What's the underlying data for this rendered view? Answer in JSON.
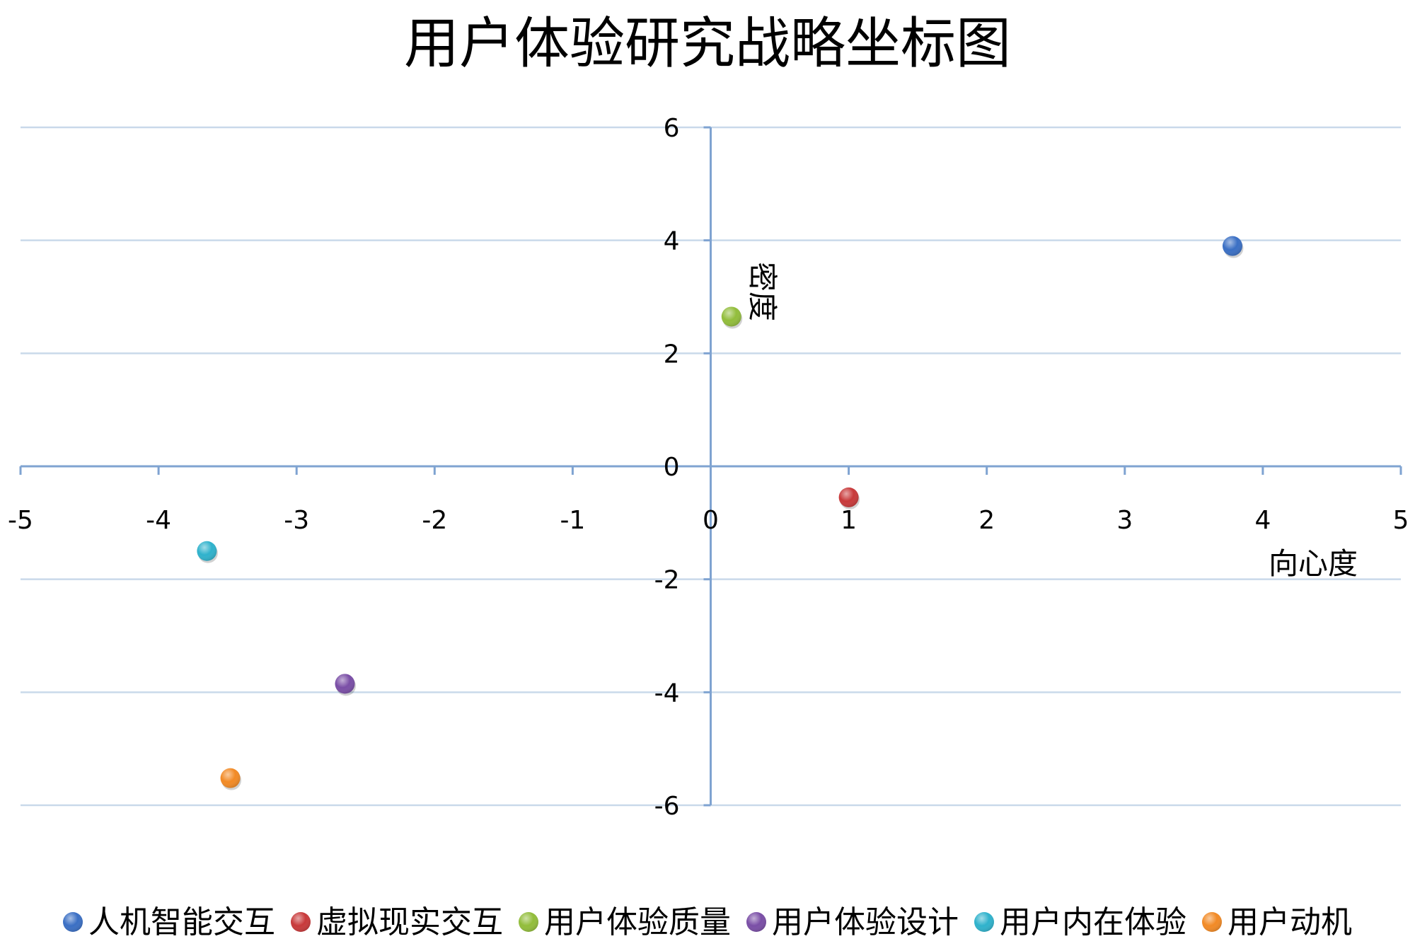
{
  "chart_data": {
    "type": "scatter",
    "title": "用户体验研究战略坐标图",
    "xlabel": "向心度",
    "ylabel": "密度",
    "xlim": [
      -5,
      5
    ],
    "ylim": [
      -6,
      6
    ],
    "x_ticks": [
      -5,
      -4,
      -3,
      -2,
      -1,
      0,
      1,
      2,
      3,
      4,
      5
    ],
    "y_ticks": [
      -6,
      -4,
      -2,
      0,
      2,
      4,
      6
    ],
    "grid": "horizontal",
    "legend_position": "bottom",
    "series": [
      {
        "name": "人机智能交互",
        "color": "#3a6fc4",
        "x": 3.78,
        "y": 3.9
      },
      {
        "name": "虚拟现实交互",
        "color": "#c8393a",
        "x": 1.0,
        "y": -0.55
      },
      {
        "name": "用户体验质量",
        "color": "#92bd3b",
        "x": 0.15,
        "y": 2.65
      },
      {
        "name": "用户体验设计",
        "color": "#7a4ea6",
        "x": -2.65,
        "y": -3.85
      },
      {
        "name": "用户内在体验",
        "color": "#2fb2cc",
        "x": -3.65,
        "y": -1.5
      },
      {
        "name": "用户动机",
        "color": "#f28a25",
        "x": -3.48,
        "y": -5.52
      }
    ]
  }
}
